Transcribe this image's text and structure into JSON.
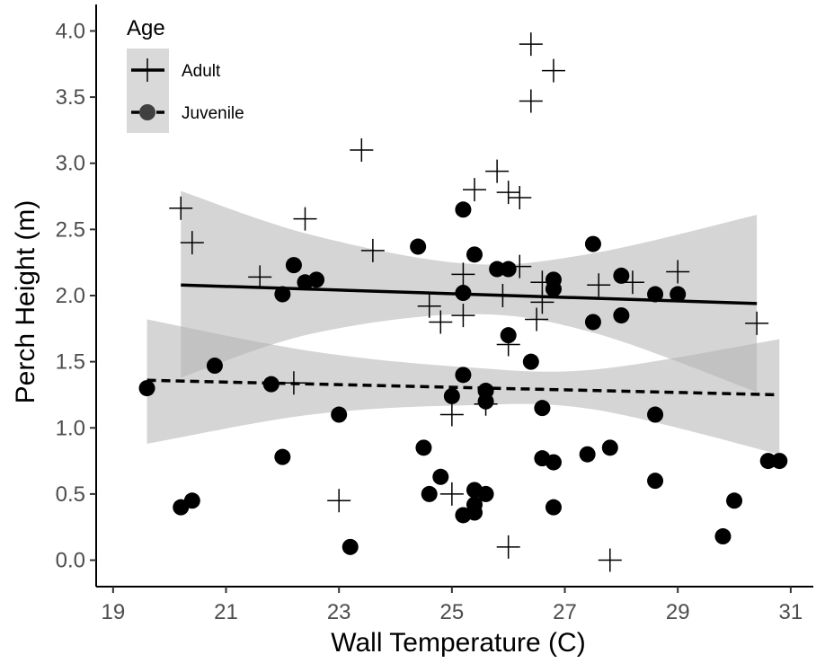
{
  "chart_data": {
    "type": "scatter",
    "title": "",
    "xlabel": "Wall Temperature (C)",
    "ylabel": "Perch Height (m)",
    "xlim": [
      18.7,
      31.4
    ],
    "ylim": [
      -0.2,
      4.2
    ],
    "xticks": [
      19,
      21,
      23,
      25,
      27,
      29,
      31
    ],
    "yticks": [
      0.0,
      0.5,
      1.0,
      1.5,
      2.0,
      2.5,
      3.0,
      3.5,
      4.0
    ],
    "ytick_labels": [
      "0.0",
      "0.5",
      "1.0",
      "1.5",
      "2.0",
      "2.5",
      "3.0",
      "3.5",
      "4.0"
    ],
    "grid": false,
    "legend": {
      "title": "Age",
      "position": "top-left",
      "background": "#d9d9d9"
    },
    "series": [
      {
        "name": "Adult",
        "marker": "plus",
        "line_style": "solid",
        "color": "#000000",
        "points": [
          [
            20.2,
            2.66
          ],
          [
            20.4,
            2.4
          ],
          [
            21.6,
            2.14
          ],
          [
            22.2,
            1.34
          ],
          [
            22.4,
            2.58
          ],
          [
            23.0,
            0.45
          ],
          [
            23.4,
            3.1
          ],
          [
            23.6,
            2.34
          ],
          [
            24.6,
            1.92
          ],
          [
            24.8,
            1.8
          ],
          [
            25.0,
            1.1
          ],
          [
            25.0,
            0.5
          ],
          [
            25.2,
            2.16
          ],
          [
            25.2,
            1.85
          ],
          [
            25.4,
            2.8
          ],
          [
            25.6,
            1.18
          ],
          [
            25.8,
            2.94
          ],
          [
            25.9,
            2.0
          ],
          [
            26.0,
            2.78
          ],
          [
            26.0,
            1.63
          ],
          [
            26.0,
            0.1
          ],
          [
            26.2,
            2.74
          ],
          [
            26.2,
            2.22
          ],
          [
            26.4,
            3.9
          ],
          [
            26.4,
            3.47
          ],
          [
            26.5,
            1.82
          ],
          [
            26.6,
            2.1
          ],
          [
            26.8,
            3.7
          ],
          [
            26.6,
            1.95
          ],
          [
            27.6,
            2.08
          ],
          [
            27.8,
            0.0
          ],
          [
            28.2,
            2.1
          ],
          [
            29.0,
            2.18
          ],
          [
            30.4,
            1.79
          ]
        ],
        "fit": {
          "x": [
            20.2,
            30.4
          ],
          "y": [
            2.08,
            1.94
          ]
        },
        "ci": {
          "x": [
            20.2,
            22.5,
            25.3,
            27.5,
            30.4
          ],
          "lower": [
            1.38,
            1.71,
            1.86,
            1.72,
            1.27
          ],
          "upper": [
            2.79,
            2.46,
            2.24,
            2.32,
            2.61
          ]
        }
      },
      {
        "name": "Juvenile",
        "marker": "circle",
        "line_style": "dashed",
        "color": "#000000",
        "points": [
          [
            19.6,
            1.3
          ],
          [
            20.2,
            0.4
          ],
          [
            20.4,
            0.45
          ],
          [
            20.8,
            1.47
          ],
          [
            21.8,
            1.33
          ],
          [
            22.0,
            0.78
          ],
          [
            22.0,
            2.01
          ],
          [
            22.2,
            2.23
          ],
          [
            22.4,
            2.1
          ],
          [
            22.6,
            2.12
          ],
          [
            23.0,
            1.1
          ],
          [
            23.2,
            0.1
          ],
          [
            24.4,
            2.37
          ],
          [
            24.5,
            0.85
          ],
          [
            24.6,
            0.5
          ],
          [
            24.8,
            0.63
          ],
          [
            25.0,
            1.24
          ],
          [
            25.2,
            2.65
          ],
          [
            25.2,
            0.34
          ],
          [
            25.2,
            1.4
          ],
          [
            25.2,
            2.02
          ],
          [
            25.4,
            2.31
          ],
          [
            25.4,
            0.53
          ],
          [
            25.4,
            0.36
          ],
          [
            25.4,
            0.42
          ],
          [
            25.6,
            1.28
          ],
          [
            25.6,
            1.2
          ],
          [
            25.6,
            0.5
          ],
          [
            25.8,
            2.2
          ],
          [
            26.0,
            2.2
          ],
          [
            26.0,
            1.7
          ],
          [
            26.4,
            1.5
          ],
          [
            26.6,
            1.15
          ],
          [
            26.6,
            0.77
          ],
          [
            26.8,
            2.12
          ],
          [
            26.8,
            2.05
          ],
          [
            26.8,
            0.74
          ],
          [
            26.8,
            0.4
          ],
          [
            27.4,
            0.8
          ],
          [
            27.5,
            2.39
          ],
          [
            27.5,
            1.8
          ],
          [
            27.8,
            0.85
          ],
          [
            28.0,
            2.15
          ],
          [
            28.0,
            1.85
          ],
          [
            28.6,
            2.01
          ],
          [
            28.6,
            1.1
          ],
          [
            28.6,
            0.6
          ],
          [
            29.0,
            2.01
          ],
          [
            29.8,
            0.18
          ],
          [
            30.0,
            0.45
          ],
          [
            30.6,
            0.75
          ],
          [
            30.8,
            0.75
          ]
        ],
        "fit": {
          "x": [
            19.6,
            30.8
          ],
          "y": [
            1.36,
            1.25
          ]
        },
        "ci": {
          "x": [
            19.6,
            22.5,
            25.2,
            27.5,
            30.8
          ],
          "lower": [
            0.88,
            1.1,
            1.17,
            1.14,
            0.8
          ],
          "upper": [
            1.82,
            1.58,
            1.46,
            1.44,
            1.67
          ]
        }
      }
    ]
  }
}
